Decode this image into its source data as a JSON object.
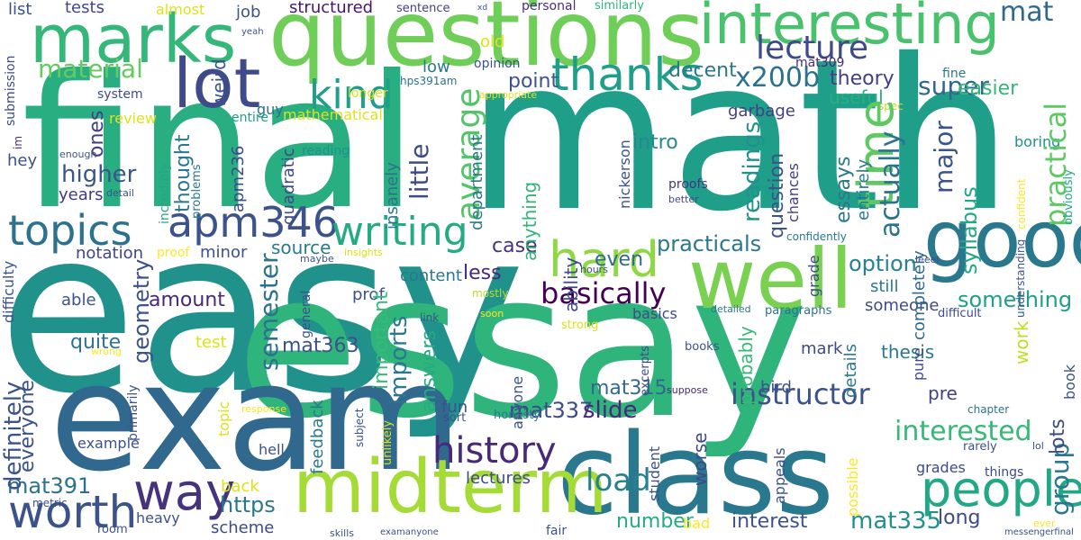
{
  "words": [
    {
      "text": "easy",
      "color": "#21918c"
    },
    {
      "text": "essay",
      "color": "#2fb47c"
    },
    {
      "text": "math",
      "color": "#1f9e89"
    },
    {
      "text": "final",
      "color": "#28ae80"
    },
    {
      "text": "exam",
      "color": "#31688e"
    },
    {
      "text": "class",
      "color": "#2a788e"
    },
    {
      "text": "questions",
      "color": "#6ece58"
    },
    {
      "text": "midterm",
      "color": "#a5db36"
    },
    {
      "text": "marks",
      "color": "#35b779"
    },
    {
      "text": "well",
      "color": "#7ad151"
    },
    {
      "text": "good",
      "color": "#2a788e"
    },
    {
      "text": "lot",
      "color": "#3e4a89"
    },
    {
      "text": "interesting",
      "color": "#4ac16d"
    },
    {
      "text": "people",
      "color": "#22a884"
    },
    {
      "text": "way",
      "color": "#46337e"
    },
    {
      "text": "worth",
      "color": "#3b528b"
    },
    {
      "text": "hard",
      "color": "#8fd744"
    },
    {
      "text": "thanks",
      "color": "#1f9e89"
    },
    {
      "text": "time",
      "color": "#5ec962"
    },
    {
      "text": "topics",
      "color": "#2c728e"
    },
    {
      "text": "apm346",
      "color": "#3b528b"
    },
    {
      "text": "writing",
      "color": "#25ab82"
    },
    {
      "text": "kind",
      "color": "#1f9e89"
    },
    {
      "text": "lecture",
      "color": "#3e4a89"
    },
    {
      "text": "history",
      "color": "#482878"
    },
    {
      "text": "load",
      "color": "#27808e"
    },
    {
      "text": "basically",
      "color": "#440154"
    },
    {
      "text": "material",
      "color": "#65cb5e"
    },
    {
      "text": "average",
      "color": "#52c569"
    },
    {
      "text": "theory",
      "color": "#433e85"
    },
    {
      "text": "x200b",
      "color": "#2c728e"
    },
    {
      "text": "super",
      "color": "#31688e"
    },
    {
      "text": "practical",
      "color": "#5ec962"
    },
    {
      "text": "group",
      "color": "#2a788e"
    },
    {
      "text": "instructor",
      "color": "#3b528b"
    },
    {
      "text": "interested",
      "color": "#38b977"
    },
    {
      "text": "mat337",
      "color": "#3e4a89"
    },
    {
      "text": "slide",
      "color": "#482878"
    },
    {
      "text": "mat315",
      "color": "#31688e"
    },
    {
      "text": "mat335",
      "color": "#21918c"
    },
    {
      "text": "mat391",
      "color": "#2c728e"
    },
    {
      "text": "mat363",
      "color": "#3b528b"
    },
    {
      "text": "mat309",
      "color": "#482878"
    },
    {
      "text": "mat",
      "color": "#31688e"
    },
    {
      "text": "semester",
      "color": "#2c728e"
    },
    {
      "text": "little",
      "color": "#3e4a89"
    },
    {
      "text": "higher",
      "color": "#39568c"
    },
    {
      "text": "readings",
      "color": "#21918c"
    },
    {
      "text": "major",
      "color": "#39568c"
    },
    {
      "text": "decent",
      "color": "#2a788e"
    },
    {
      "text": "point",
      "color": "#3b528b"
    },
    {
      "text": "practicals",
      "color": "#2a788e"
    },
    {
      "text": "syllabus",
      "color": "#22a884"
    },
    {
      "text": "actually",
      "color": "#2c728e"
    },
    {
      "text": "essays",
      "color": "#2a788e"
    },
    {
      "text": "option",
      "color": "#26828e"
    },
    {
      "text": "something",
      "color": "#1f9e89"
    },
    {
      "text": "easier",
      "color": "#35b779"
    },
    {
      "text": "useful",
      "color": "#29af7f"
    },
    {
      "text": "intro",
      "color": "#23898e"
    },
    {
      "text": "amount",
      "color": "#482878"
    },
    {
      "text": "geometry",
      "color": "#3b528b"
    },
    {
      "text": "imports",
      "color": "#2a788e"
    },
    {
      "text": "answers",
      "color": "#25ab82"
    },
    {
      "text": "important",
      "color": "#38b977"
    },
    {
      "text": "source",
      "color": "#287c8e"
    },
    {
      "text": "notation",
      "color": "#414487"
    },
    {
      "text": "definitely",
      "color": "#3b528b"
    },
    {
      "text": "everyone",
      "color": "#3b528b"
    },
    {
      "text": "quite",
      "color": "#2c728e"
    },
    {
      "text": "even",
      "color": "#306a8e"
    },
    {
      "text": "https",
      "color": "#2a788e"
    },
    {
      "text": "number",
      "color": "#25ab82"
    },
    {
      "text": "interest",
      "color": "#3b528b"
    },
    {
      "text": "long",
      "color": "#3e4a89"
    },
    {
      "text": "lots",
      "color": "#3e4a89"
    },
    {
      "text": "case",
      "color": "#46337e"
    },
    {
      "text": "less",
      "color": "#482878"
    },
    {
      "text": "ability",
      "color": "#3e4a89"
    },
    {
      "text": "anything",
      "color": "#2fb47c"
    },
    {
      "text": "department",
      "color": "#2a788e"
    },
    {
      "text": "ones",
      "color": "#433e85"
    },
    {
      "text": "years",
      "color": "#443983"
    },
    {
      "text": "thought",
      "color": "#2a788e"
    },
    {
      "text": "weird",
      "color": "#3b528b"
    },
    {
      "text": "job",
      "color": "#3b528b"
    },
    {
      "text": "structured",
      "color": "#481668"
    },
    {
      "text": "tests",
      "color": "#404688"
    },
    {
      "text": "list",
      "color": "#3b528b"
    },
    {
      "text": "almost",
      "color": "#dde318"
    },
    {
      "text": "sentence",
      "color": "#433e85"
    },
    {
      "text": "personal",
      "color": "#472f7d"
    },
    {
      "text": "similarly",
      "color": "#2fb47c"
    },
    {
      "text": "old",
      "color": "#dde318"
    },
    {
      "text": "low",
      "color": "#2a788e"
    },
    {
      "text": "opinion",
      "color": "#3b528b"
    },
    {
      "text": "hps391am",
      "color": "#2c728e"
    },
    {
      "text": "longer",
      "color": "#dde318"
    },
    {
      "text": "fine",
      "color": "#2a788e"
    },
    {
      "text": "guy",
      "color": "#2c728e"
    },
    {
      "text": "garbage",
      "color": "#433e85"
    },
    {
      "text": "system",
      "color": "#3e4a89"
    },
    {
      "text": "entire",
      "color": "#1f9e89"
    },
    {
      "text": "mathematical",
      "color": "#dde318"
    },
    {
      "text": "review",
      "color": "#dde318"
    },
    {
      "text": "submission",
      "color": "#3e4a89"
    },
    {
      "text": "appropriate",
      "color": "#dde318"
    },
    {
      "text": "spec",
      "color": "#bddf26"
    },
    {
      "text": "completely",
      "color": "#31688e"
    },
    {
      "text": "entirely",
      "color": "#2a788e"
    },
    {
      "text": "question",
      "color": "#3b528b"
    },
    {
      "text": "chances",
      "color": "#433e85"
    },
    {
      "text": "proofs",
      "color": "#46337e"
    },
    {
      "text": "better",
      "color": "#3e4a89"
    },
    {
      "text": "confident",
      "color": "#fde725"
    },
    {
      "text": "understanding",
      "color": "#3b528b"
    },
    {
      "text": "obviously",
      "color": "#22a884"
    },
    {
      "text": "boring",
      "color": "#20928c"
    },
    {
      "text": "nickerson",
      "color": "#3b528b"
    },
    {
      "text": "insanely",
      "color": "#2c728e"
    },
    {
      "text": "quadratic",
      "color": "#3e4a89"
    },
    {
      "text": "reading",
      "color": "#20928c"
    },
    {
      "text": "incredibly",
      "color": "#22a884"
    },
    {
      "text": "problems",
      "color": "#2a788e"
    },
    {
      "text": "apm236",
      "color": "#3e4a89"
    },
    {
      "text": "enough",
      "color": "#3b528b"
    },
    {
      "text": "hey",
      "color": "#3b528b"
    },
    {
      "text": "im",
      "color": "#482878"
    },
    {
      "text": "detail",
      "color": "#3b528b"
    },
    {
      "text": "minor",
      "color": "#3b528b"
    },
    {
      "text": "proof",
      "color": "#fde725"
    },
    {
      "text": "insights",
      "color": "#dde318"
    },
    {
      "text": "maybe",
      "color": "#3b528b"
    },
    {
      "text": "content",
      "color": "#2a788e"
    },
    {
      "text": "hours",
      "color": "#3b528b"
    },
    {
      "text": "confidently",
      "color": "#2a788e"
    },
    {
      "text": "leeel",
      "color": "#3e4a89"
    },
    {
      "text": "grade",
      "color": "#3e4a89"
    },
    {
      "text": "still",
      "color": "#2a788e"
    },
    {
      "text": "someone",
      "color": "#3e4a89"
    },
    {
      "text": "paragraphs",
      "color": "#2c728e"
    },
    {
      "text": "detailed",
      "color": "#2a788e"
    },
    {
      "text": "soon",
      "color": "#fde725"
    },
    {
      "text": "mostly",
      "color": "#bddf26"
    },
    {
      "text": "basics",
      "color": "#3e4a89"
    },
    {
      "text": "difficult",
      "color": "#3e4a89"
    },
    {
      "text": "link",
      "color": "#3b528b"
    },
    {
      "text": "prof",
      "color": "#3b528b"
    },
    {
      "text": "general",
      "color": "#3b528b"
    },
    {
      "text": "able",
      "color": "#3b528b"
    },
    {
      "text": "difficulty",
      "color": "#3b528b"
    },
    {
      "text": "test",
      "color": "#dde318"
    },
    {
      "text": "wrong",
      "color": "#fde725"
    },
    {
      "text": "strong",
      "color": "#dde318"
    },
    {
      "text": "probably",
      "color": "#38b977"
    },
    {
      "text": "mark",
      "color": "#3e4a89"
    },
    {
      "text": "details",
      "color": "#2a788e"
    },
    {
      "text": "thesis",
      "color": "#2a788e"
    },
    {
      "text": "pure",
      "color": "#3e4a89"
    },
    {
      "text": "work",
      "color": "#bddf26"
    },
    {
      "text": "book",
      "color": "#3b528b"
    },
    {
      "text": "books",
      "color": "#3b528b"
    },
    {
      "text": "bird",
      "color": "#3b528b"
    },
    {
      "text": "excerpts",
      "color": "#3e4a89"
    },
    {
      "text": "suppose",
      "color": "#482878"
    },
    {
      "text": "pre",
      "color": "#433e85"
    },
    {
      "text": "chapter",
      "color": "#2c728e"
    },
    {
      "text": "rarely",
      "color": "#3b528b"
    },
    {
      "text": "lol",
      "color": "#3b528b"
    },
    {
      "text": "fun",
      "color": "#3b528b"
    },
    {
      "text": "sort",
      "color": "#3b528b"
    },
    {
      "text": "anyone",
      "color": "#3b528b"
    },
    {
      "text": "honesty",
      "color": "#2a788e"
    },
    {
      "text": "primarily",
      "color": "#3b528b"
    },
    {
      "text": "topic",
      "color": "#dde318"
    },
    {
      "text": "response",
      "color": "#fde725"
    },
    {
      "text": "example",
      "color": "#3b528b"
    },
    {
      "text": "hell",
      "color": "#3b528b"
    },
    {
      "text": "subject",
      "color": "#3b528b"
    },
    {
      "text": "unlikely",
      "color": "#dde318"
    },
    {
      "text": "feedback",
      "color": "#2a788e"
    },
    {
      "text": "lectures",
      "color": "#3e4a89"
    },
    {
      "text": "student",
      "color": "#3b528b"
    },
    {
      "text": "worse",
      "color": "#3e4a89"
    },
    {
      "text": "appeals",
      "color": "#3b528b"
    },
    {
      "text": "possible",
      "color": "#fde725"
    },
    {
      "text": "grades",
      "color": "#3e4a89"
    },
    {
      "text": "things",
      "color": "#3e4a89"
    },
    {
      "text": "ever",
      "color": "#fde725"
    },
    {
      "text": "messengerfinal",
      "color": "#3b528b"
    },
    {
      "text": "back",
      "color": "#dde318"
    },
    {
      "text": "heavy",
      "color": "#3b528b"
    },
    {
      "text": "scheme",
      "color": "#3e4a89"
    },
    {
      "text": "bad",
      "color": "#fde725"
    },
    {
      "text": "fair",
      "color": "#3b528b"
    },
    {
      "text": "skills",
      "color": "#3b528b"
    },
    {
      "text": "examanyone",
      "color": "#3b528b"
    },
    {
      "text": "room",
      "color": "#3b528b"
    },
    {
      "text": "metric",
      "color": "#3b528b"
    },
    {
      "text": "yeah",
      "color": "#3b528b"
    },
    {
      "text": "xd",
      "color": "#3b528b"
    }
  ]
}
